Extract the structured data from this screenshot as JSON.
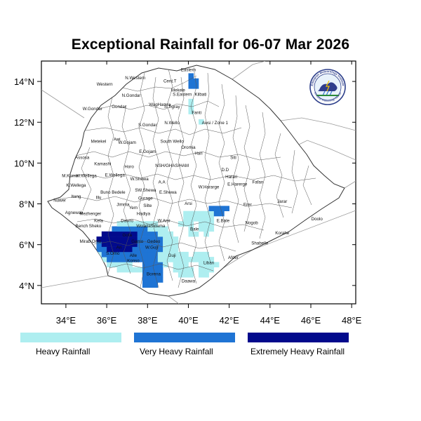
{
  "title": "Exceptional Rainfall for 06-07 Mar 2026",
  "axes": {
    "x_ticks": [
      "34°E",
      "36°E",
      "38°E",
      "40°E",
      "42°E",
      "44°E",
      "46°E",
      "48°E"
    ],
    "y_ticks": [
      "14°N",
      "12°N",
      "10°N",
      "8°N",
      "6°N",
      "4°N"
    ]
  },
  "logo": {
    "top_text": "Ethiopian Meteorology Institute",
    "bottom_text": "Ethiopian Meteorology Institute"
  },
  "legend": [
    {
      "label": "Heavy Rainfall",
      "color": "#aeeef0"
    },
    {
      "label": "Very Heavy Rainfall",
      "color": "#1f74d4"
    },
    {
      "label": "Extremely Heavy Rainfall",
      "color": "#020a8c"
    }
  ],
  "regions": [
    {
      "name": "Eastern",
      "lon": 40.0,
      "lat": 14.5
    },
    {
      "name": "Western",
      "lon": 35.9,
      "lat": 13.8
    },
    {
      "name": "N.Western",
      "lon": 37.4,
      "lat": 14.1
    },
    {
      "name": "Cent.T",
      "lon": 39.1,
      "lat": 13.95
    },
    {
      "name": "Mekele",
      "lon": 39.5,
      "lat": 13.5
    },
    {
      "name": "S.Eastern",
      "lon": 39.7,
      "lat": 13.3
    },
    {
      "name": "Kilbati",
      "lon": 40.6,
      "lat": 13.3
    },
    {
      "name": "N.Gondar",
      "lon": 37.2,
      "lat": 13.25
    },
    {
      "name": "W.Gondar",
      "lon": 35.3,
      "lat": 12.6
    },
    {
      "name": "Gondar",
      "lon": 36.6,
      "lat": 12.7
    },
    {
      "name": "WagHamra",
      "lon": 38.6,
      "lat": 12.8
    },
    {
      "name": "S.Tigray",
      "lon": 39.2,
      "lat": 12.7
    },
    {
      "name": "Fanti",
      "lon": 40.4,
      "lat": 12.4
    },
    {
      "name": "N.Wello",
      "lon": 39.2,
      "lat": 11.9
    },
    {
      "name": "Awsi / Zone 1",
      "lon": 41.3,
      "lat": 11.9
    },
    {
      "name": "S.Gondar",
      "lon": 38.0,
      "lat": 11.8
    },
    {
      "name": "Metekel",
      "lon": 35.6,
      "lat": 11.0
    },
    {
      "name": "Awi",
      "lon": 36.5,
      "lat": 11.1
    },
    {
      "name": "W.Gojam",
      "lon": 37.0,
      "lat": 10.95
    },
    {
      "name": "South Wello",
      "lon": 39.2,
      "lat": 11.0
    },
    {
      "name": "Oromia",
      "lon": 40.0,
      "lat": 10.7
    },
    {
      "name": "E.Gojam",
      "lon": 38.0,
      "lat": 10.5
    },
    {
      "name": "Hari",
      "lon": 40.5,
      "lat": 10.4
    },
    {
      "name": "Assosa",
      "lon": 34.8,
      "lat": 10.2
    },
    {
      "name": "Siti",
      "lon": 42.2,
      "lat": 10.2
    },
    {
      "name": "Kamashi",
      "lon": 35.8,
      "lat": 9.9
    },
    {
      "name": "Horo",
      "lon": 37.1,
      "lat": 9.75
    },
    {
      "name": "NSH/GHAS/HAM",
      "lon": 39.2,
      "lat": 9.8
    },
    {
      "name": "D.D",
      "lon": 41.8,
      "lat": 9.6
    },
    {
      "name": "Harari",
      "lon": 42.1,
      "lat": 9.25
    },
    {
      "name": "M.Komo",
      "lon": 34.2,
      "lat": 9.3
    },
    {
      "name": "W.Wellega",
      "lon": 35.0,
      "lat": 9.3
    },
    {
      "name": "E.Wellega",
      "lon": 36.4,
      "lat": 9.35
    },
    {
      "name": "W.Shewa",
      "lon": 37.6,
      "lat": 9.15
    },
    {
      "name": "A.A",
      "lon": 38.7,
      "lat": 9.0
    },
    {
      "name": "E.Harerge",
      "lon": 42.4,
      "lat": 8.9
    },
    {
      "name": "Fafan",
      "lon": 43.4,
      "lat": 9.0
    },
    {
      "name": "K.Wellega",
      "lon": 34.5,
      "lat": 8.85
    },
    {
      "name": "W.Hararge",
      "lon": 41.0,
      "lat": 8.75
    },
    {
      "name": "SW.Shewa",
      "lon": 37.9,
      "lat": 8.6
    },
    {
      "name": "E.Shewa",
      "lon": 39.0,
      "lat": 8.5
    },
    {
      "name": "Buno Bedele",
      "lon": 36.3,
      "lat": 8.5
    },
    {
      "name": "Gurage",
      "lon": 37.9,
      "lat": 8.2
    },
    {
      "name": "Illu",
      "lon": 35.6,
      "lat": 8.25
    },
    {
      "name": "Jarar",
      "lon": 44.6,
      "lat": 8.05
    },
    {
      "name": "Nuwer",
      "lon": 33.7,
      "lat": 8.1
    },
    {
      "name": "Itang",
      "lon": 34.5,
      "lat": 8.3
    },
    {
      "name": "Jimma",
      "lon": 36.8,
      "lat": 7.9
    },
    {
      "name": "Silte",
      "lon": 38.0,
      "lat": 7.85
    },
    {
      "name": "Arsi",
      "lon": 40.0,
      "lat": 7.95
    },
    {
      "name": "Erer",
      "lon": 42.9,
      "lat": 7.9
    },
    {
      "name": "Yem",
      "lon": 37.3,
      "lat": 7.75
    },
    {
      "name": "Agnewak",
      "lon": 34.4,
      "lat": 7.5
    },
    {
      "name": "Mezhenger",
      "lon": 35.2,
      "lat": 7.45
    },
    {
      "name": "Kefa",
      "lon": 35.6,
      "lat": 7.1
    },
    {
      "name": "Dawro",
      "lon": 37.0,
      "lat": 7.1
    },
    {
      "name": "Hadiya",
      "lon": 37.8,
      "lat": 7.45
    },
    {
      "name": "W.Arsi",
      "lon": 38.8,
      "lat": 7.1
    },
    {
      "name": "E.Bale",
      "lon": 41.7,
      "lat": 7.1
    },
    {
      "name": "Nogob",
      "lon": 43.1,
      "lat": 7.0
    },
    {
      "name": "Doolo",
      "lon": 46.3,
      "lat": 7.2
    },
    {
      "name": "Bench Sheko",
      "lon": 35.1,
      "lat": 6.85
    },
    {
      "name": "Wolaita",
      "lon": 37.8,
      "lat": 6.85
    },
    {
      "name": "Sidama",
      "lon": 38.5,
      "lat": 6.85
    },
    {
      "name": "Bale",
      "lon": 40.3,
      "lat": 6.7
    },
    {
      "name": "Korahe",
      "lon": 44.6,
      "lat": 6.5
    },
    {
      "name": "Gofa",
      "lon": 37.0,
      "lat": 6.4
    },
    {
      "name": "Shabelle",
      "lon": 43.5,
      "lat": 6.0
    },
    {
      "name": "Mirab Omo",
      "lon": 35.2,
      "lat": 6.1
    },
    {
      "name": "Gamo",
      "lon": 37.5,
      "lat": 6.1
    },
    {
      "name": "Gedeo",
      "lon": 38.3,
      "lat": 6.1
    },
    {
      "name": "S.Omo",
      "lon": 36.3,
      "lat": 5.5
    },
    {
      "name": "Ari",
      "lon": 36.6,
      "lat": 5.8
    },
    {
      "name": "W.Guji",
      "lon": 38.2,
      "lat": 5.8
    },
    {
      "name": "Alle",
      "lon": 37.3,
      "lat": 5.4
    },
    {
      "name": "Guji",
      "lon": 39.2,
      "lat": 5.4
    },
    {
      "name": "Konso",
      "lon": 37.3,
      "lat": 5.15
    },
    {
      "name": "Afder",
      "lon": 42.2,
      "lat": 5.3
    },
    {
      "name": "Liban",
      "lon": 41.0,
      "lat": 5.05
    },
    {
      "name": "Borena",
      "lon": 38.3,
      "lat": 4.5
    },
    {
      "name": "Daawa",
      "lon": 40.0,
      "lat": 4.15
    }
  ]
}
